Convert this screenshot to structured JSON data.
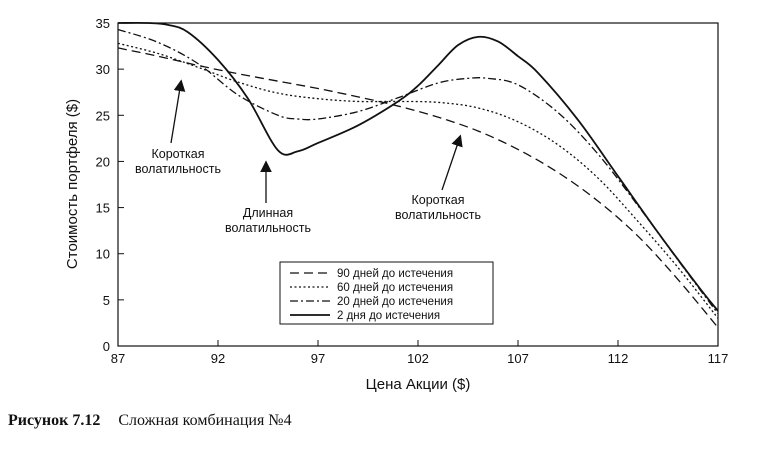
{
  "chart_data": {
    "type": "line",
    "title": "",
    "xlabel": "Цена Акции ($)",
    "ylabel": "Стоимость портфеля ($)",
    "xlim": [
      87,
      117
    ],
    "ylim": [
      0,
      35
    ],
    "xticks": [
      87,
      92,
      97,
      102,
      107,
      112,
      117
    ],
    "yticks": [
      0,
      5,
      10,
      15,
      20,
      25,
      30,
      35
    ],
    "grid": false,
    "legend_position": "bottom-center",
    "series": [
      {
        "name": "90 дней до истечения",
        "style": "dashed",
        "x": [
          87,
          89,
          91,
          93,
          95,
          97,
          99,
          101,
          103,
          105,
          107,
          109,
          111,
          113,
          115,
          117
        ],
        "y": [
          32.3,
          31.4,
          30.4,
          29.5,
          28.7,
          27.9,
          27.0,
          26.0,
          24.8,
          23.3,
          21.3,
          18.8,
          15.7,
          11.9,
          7.2,
          2.0
        ]
      },
      {
        "name": "60 дней до истечения",
        "style": "dotted",
        "x": [
          87,
          89,
          91,
          93,
          95,
          97,
          99,
          101,
          103,
          105,
          107,
          109,
          111,
          113,
          115,
          117
        ],
        "y": [
          32.8,
          31.7,
          30.2,
          28.6,
          27.4,
          26.8,
          26.5,
          26.5,
          26.4,
          25.8,
          24.3,
          21.8,
          18.2,
          13.5,
          8.5,
          3.0
        ]
      },
      {
        "name": "20 дней до истечения",
        "style": "dash-dot",
        "x": [
          87,
          89,
          91,
          93,
          95,
          96,
          97,
          99,
          101,
          103,
          104.5,
          105.5,
          107,
          109,
          111,
          113,
          115,
          117
        ],
        "y": [
          34.3,
          32.9,
          30.6,
          27.2,
          25.0,
          24.6,
          24.6,
          25.4,
          26.9,
          28.5,
          29.0,
          29.0,
          28.3,
          25.3,
          20.8,
          15.2,
          9.3,
          3.5
        ]
      },
      {
        "name": "2 дня до истечения",
        "style": "solid",
        "x": [
          87,
          88.5,
          89.5,
          90.5,
          92,
          93.5,
          95,
          96,
          97,
          99,
          101,
          102,
          103,
          104,
          105,
          106,
          107,
          108,
          110,
          112,
          114,
          116,
          117
        ],
        "y": [
          35.0,
          35.0,
          34.8,
          34.0,
          31.0,
          26.8,
          21.2,
          21.1,
          22.0,
          23.9,
          26.5,
          28.2,
          30.4,
          32.6,
          33.5,
          33.0,
          31.4,
          29.6,
          24.5,
          18.4,
          12.3,
          6.5,
          3.8
        ]
      }
    ],
    "annotations": [
      {
        "lines": [
          "Короткая",
          "волатильность"
        ]
      },
      {
        "lines": [
          "Длинная",
          "волатильность"
        ]
      },
      {
        "lines": [
          "Короткая",
          "волатильность"
        ]
      }
    ]
  },
  "caption": {
    "figure_number": "Рисунок 7.12",
    "text": "Сложная комбинация №4"
  }
}
